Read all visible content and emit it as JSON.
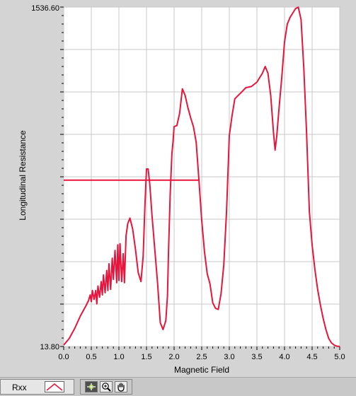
{
  "graph": {
    "ylabel": "Longitudinal Resistance",
    "xlabel": "Magnetic Field",
    "y_max_label": "1536.60",
    "y_min_label": "13.80",
    "x_tick_labels": [
      "0.0",
      "0.5",
      "1.0",
      "1.5",
      "2.0",
      "2.5",
      "3.0",
      "3.5",
      "4.0",
      "4.5",
      "5.0"
    ],
    "colors": {
      "trace": "#e8143c",
      "plot_bg": "#ffffff",
      "grid": "#c9c9c9",
      "frame": "#d4d4d4"
    }
  },
  "chart_data": {
    "type": "line",
    "title": "",
    "xlabel": "Magnetic Field",
    "ylabel": "Longitudinal Resistance",
    "xlim": [
      0,
      5
    ],
    "ylim": [
      13.8,
      1536.6
    ],
    "grid": true,
    "series": [
      {
        "name": "Rxx",
        "x": [
          0.0,
          0.1,
          0.2,
          0.3,
          0.4,
          0.45,
          0.48,
          0.5,
          0.52,
          0.55,
          0.58,
          0.6,
          0.62,
          0.65,
          0.68,
          0.7,
          0.72,
          0.75,
          0.78,
          0.8,
          0.82,
          0.85,
          0.88,
          0.9,
          0.93,
          0.96,
          0.98,
          1.0,
          1.02,
          1.05,
          1.08,
          1.1,
          1.13,
          1.16,
          1.2,
          1.25,
          1.3,
          1.35,
          1.4,
          1.44,
          1.47,
          1.5,
          1.53,
          1.56,
          1.6,
          1.65,
          1.7,
          1.75,
          1.8,
          1.85,
          1.88,
          1.9,
          1.93,
          1.96,
          1.98,
          2.0,
          2.05,
          2.1,
          2.15,
          2.2,
          2.25,
          2.3,
          2.35,
          2.4,
          2.45,
          2.5,
          2.55,
          2.6,
          2.65,
          2.7,
          2.75,
          2.8,
          2.85,
          2.9,
          2.95,
          3.0,
          3.05,
          3.1,
          3.2,
          3.3,
          3.4,
          3.5,
          3.6,
          3.65,
          3.7,
          3.75,
          3.8,
          3.83,
          3.86,
          3.9,
          3.95,
          4.0,
          4.05,
          4.1,
          4.15,
          4.2,
          4.25,
          4.3,
          4.35,
          4.4,
          4.45,
          4.5,
          4.55,
          4.6,
          4.65,
          4.7,
          4.75,
          4.8,
          4.85,
          4.9,
          4.95,
          5.0
        ],
        "y": [
          20,
          50,
          95,
          150,
          195,
          220,
          245,
          215,
          265,
          225,
          265,
          205,
          285,
          235,
          305,
          245,
          335,
          255,
          355,
          265,
          385,
          270,
          410,
          315,
          445,
          300,
          470,
          310,
          475,
          305,
          430,
          300,
          510,
          565,
          590,
          540,
          450,
          345,
          305,
          420,
          640,
          810,
          810,
          740,
          600,
          450,
          300,
          120,
          90,
          130,
          240,
          450,
          700,
          880,
          930,
          1000,
          1005,
          1060,
          1170,
          1140,
          1085,
          1040,
          1000,
          930,
          760,
          580,
          440,
          340,
          295,
          210,
          185,
          180,
          250,
          380,
          620,
          960,
          1050,
          1125,
          1150,
          1175,
          1180,
          1200,
          1240,
          1270,
          1240,
          1140,
          975,
          895,
          960,
          1080,
          1220,
          1380,
          1460,
          1490,
          1510,
          1530,
          1536,
          1480,
          1260,
          970,
          620,
          470,
          360,
          270,
          200,
          140,
          90,
          50,
          30,
          20,
          15,
          14
        ]
      }
    ],
    "annotations": [
      {
        "type": "hline",
        "y": 760,
        "x_start": 0.0,
        "x_end": 2.45
      }
    ]
  },
  "legend": {
    "label": "Rxx"
  },
  "palette": {
    "cursor_icon": "crosshair-cursor-icon",
    "zoom_icon": "zoom-icon",
    "pan_icon": "hand-pan-icon"
  }
}
